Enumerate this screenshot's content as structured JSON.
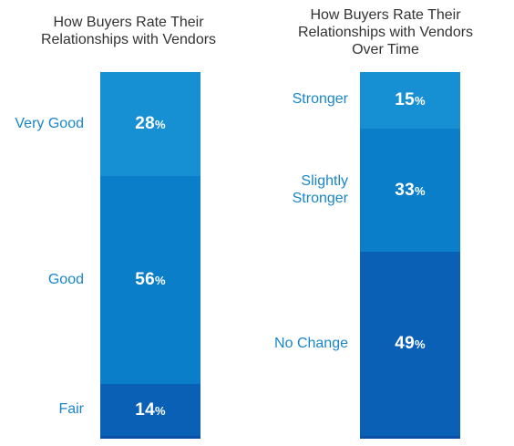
{
  "chart_data": [
    {
      "type": "bar",
      "stacked": true,
      "title": "How Buyers Rate Their\nRelationships with Vendors",
      "categories": [
        "Very Good",
        "Good",
        "Fair"
      ],
      "values": [
        28,
        56,
        14
      ],
      "value_labels": [
        "28",
        "56",
        "14"
      ],
      "unit": "%",
      "colors": [
        "#168fd3",
        "#0a7ec9",
        "#0a60b4"
      ]
    },
    {
      "type": "bar",
      "stacked": true,
      "title": "How Buyers Rate Their\nRelationships with Vendors\nOver Time",
      "categories": [
        "Stronger",
        "Slightly\nStronger",
        "No Change"
      ],
      "values": [
        15,
        33,
        49
      ],
      "value_labels": [
        "15",
        "33",
        "49"
      ],
      "unit": "%",
      "colors": [
        "#168fd3",
        "#0a7ec9",
        "#0a60b4"
      ]
    }
  ]
}
